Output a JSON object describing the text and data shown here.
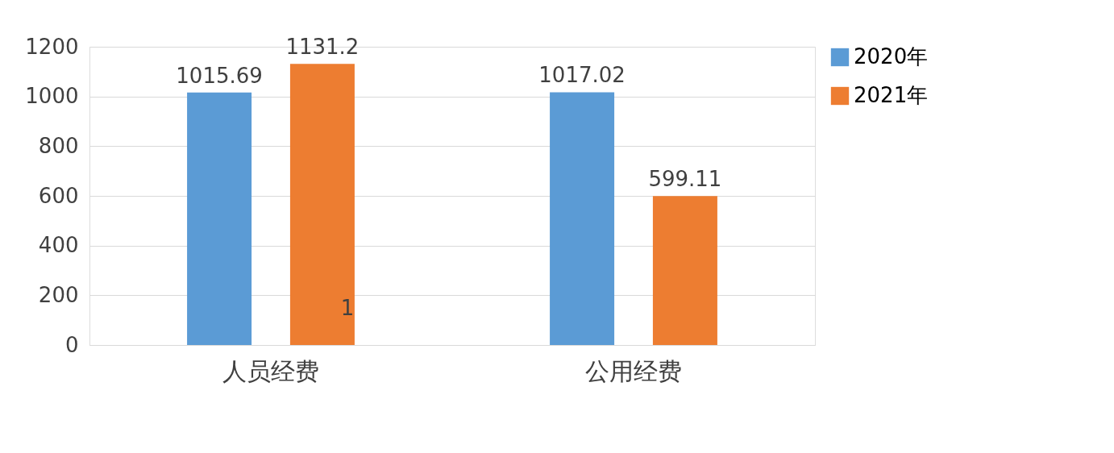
{
  "chart_data": {
    "type": "bar",
    "categories": [
      "人员经费",
      "公用经费"
    ],
    "series": [
      {
        "name": "2020年",
        "color": "#5b9bd5",
        "values": [
          1015.69,
          1017.02
        ]
      },
      {
        "name": "2021年",
        "color": "#ed7d31",
        "values": [
          1131.2,
          599.11
        ]
      }
    ],
    "ylim": [
      0,
      1200
    ],
    "yticks": [
      0,
      200,
      400,
      600,
      800,
      1000,
      1200
    ],
    "grid": "y",
    "legend": "right",
    "data_labels": true,
    "annotations": [
      "1"
    ]
  }
}
